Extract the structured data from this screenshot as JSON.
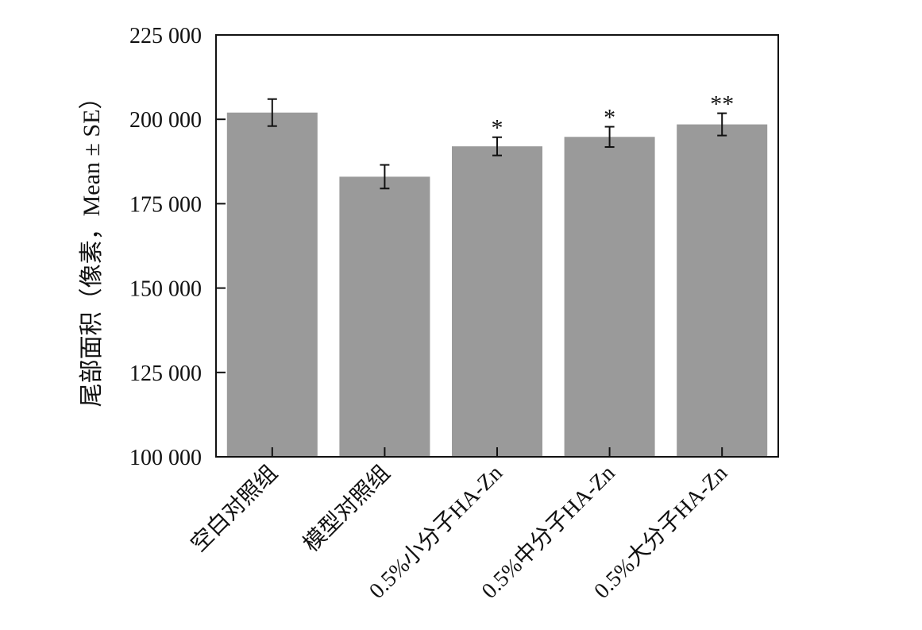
{
  "chart_data": {
    "type": "bar",
    "ylabel": "尾部面积（像素，Mean ± SE）",
    "xlabel": "",
    "ylim": [
      100000,
      225000
    ],
    "y_ticks": [
      100000,
      125000,
      150000,
      175000,
      200000,
      225000
    ],
    "y_tick_labels": [
      "100 000",
      "125 000",
      "150 000",
      "175 000",
      "200 000",
      "225 000"
    ],
    "categories": [
      "空白对照组",
      "模型对照组",
      "0.5%小分子HA-Zn",
      "0.5%中分子HA-Zn",
      "0.5%大分子HA-Zn"
    ],
    "values": [
      202000,
      183000,
      192000,
      194800,
      198500
    ],
    "errors": [
      4000,
      3500,
      2700,
      3000,
      3300
    ],
    "significance": [
      "",
      "",
      "*",
      "*",
      "**"
    ],
    "bar_color": "#9a9a9a",
    "grid": false,
    "legend": "none"
  }
}
